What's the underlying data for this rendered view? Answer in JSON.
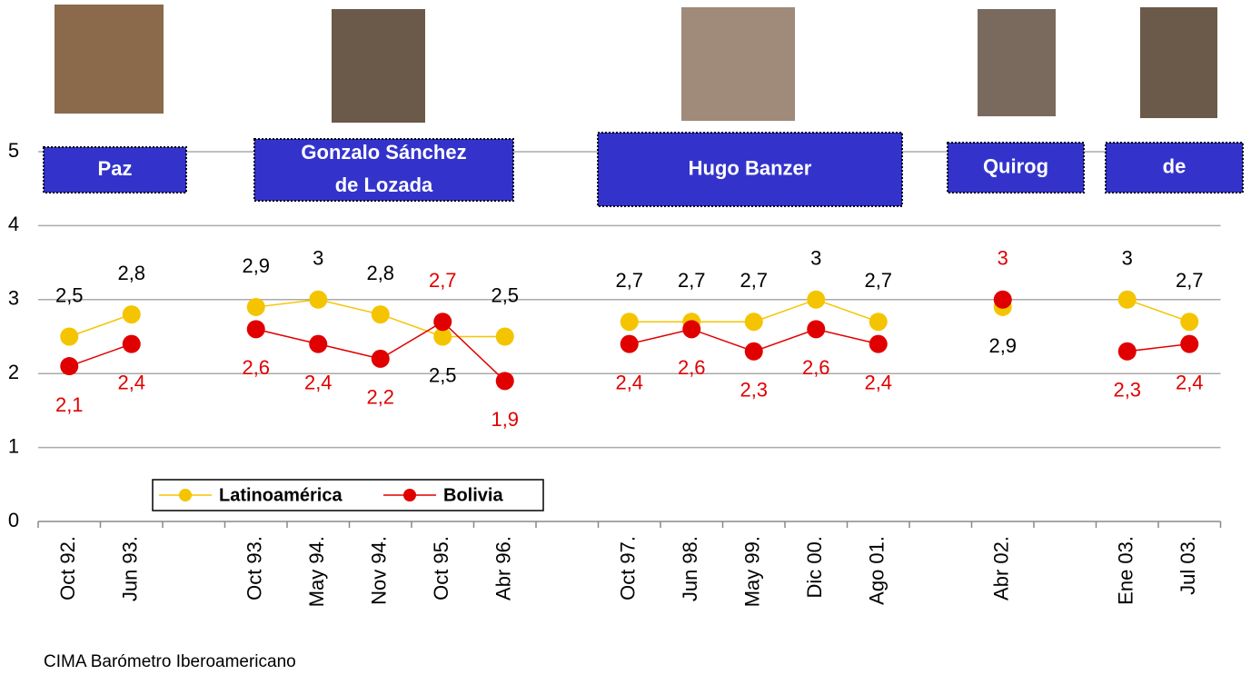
{
  "chart_data": {
    "type": "line",
    "categories": [
      "Oct 92.",
      "Jun 93.",
      null,
      "Oct 93.",
      "May 94.",
      "Nov 94.",
      "Oct 95.",
      "Abr 96.",
      null,
      "Oct 97.",
      "Jun 98.",
      "May 99.",
      "Dic 00.",
      "Ago 01.",
      null,
      "Abr 02.",
      null,
      "Ene 03.",
      "Jul 03."
    ],
    "series": [
      {
        "name": "Latinoamérica",
        "color": "#f5c400",
        "label_color": "#000000",
        "values": [
          2.5,
          2.8,
          null,
          2.9,
          3,
          2.8,
          2.5,
          2.5,
          null,
          2.7,
          2.7,
          2.7,
          3,
          2.7,
          null,
          2.9,
          null,
          3,
          2.7
        ],
        "value_labels": [
          "2,5",
          "2,8",
          null,
          "2,9",
          "3",
          "2,8",
          "2,5",
          "2,5",
          null,
          "2,7",
          "2,7",
          "2,7",
          "3",
          "2,7",
          null,
          "2,9",
          null,
          "3",
          "2,7"
        ]
      },
      {
        "name": "Bolivia",
        "color": "#e00000",
        "label_color": "#e00000",
        "values": [
          2.1,
          2.4,
          null,
          2.6,
          2.4,
          2.2,
          2.7,
          1.9,
          null,
          2.4,
          2.6,
          2.3,
          2.6,
          2.4,
          null,
          3,
          null,
          2.3,
          2.4
        ],
        "value_labels": [
          "2,1",
          "2,4",
          null,
          "2,6",
          "2,4",
          "2,2",
          "2,7",
          "1,9",
          null,
          "2,4",
          "2,6",
          "2,3",
          "2,6",
          "2,4",
          null,
          "3",
          null,
          "2,3",
          "2,4"
        ]
      }
    ],
    "ylim": [
      0,
      5
    ],
    "yticks": [
      0,
      1,
      2,
      3,
      4,
      5
    ],
    "grid": true,
    "annotations": [
      [
        "Paz"
      ],
      [
        "Gonzalo Sánchez",
        "de Lozada"
      ],
      [
        "Hugo Banzer"
      ],
      [
        "Quirog"
      ],
      [
        "de"
      ]
    ],
    "source": "CIMA Barómetro Iberoamericano"
  }
}
